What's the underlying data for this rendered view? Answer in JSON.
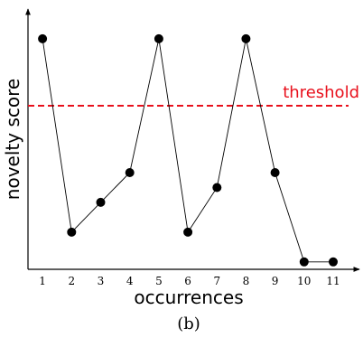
{
  "chart_data": {
    "type": "line",
    "x": [
      1,
      2,
      3,
      4,
      5,
      6,
      7,
      8,
      9,
      10,
      11
    ],
    "series": [
      {
        "values": [
          15,
          2,
          4,
          6,
          15,
          2,
          5,
          15,
          6,
          0,
          0
        ]
      }
    ],
    "threshold": {
      "value": 10.5,
      "label": "threshold",
      "color": "#e8101c"
    },
    "xlabel": "occurrences",
    "ylabel": "novelty score",
    "xticks": [
      "1",
      "2",
      "3",
      "4",
      "5",
      "6",
      "7",
      "8",
      "9",
      "10",
      "11"
    ],
    "xlim": [
      0.5,
      11.9
    ],
    "ylim": [
      -0.5,
      17
    ],
    "grid": false,
    "caption": "(b)",
    "line_color": "#000000",
    "marker_color": "#000000"
  }
}
